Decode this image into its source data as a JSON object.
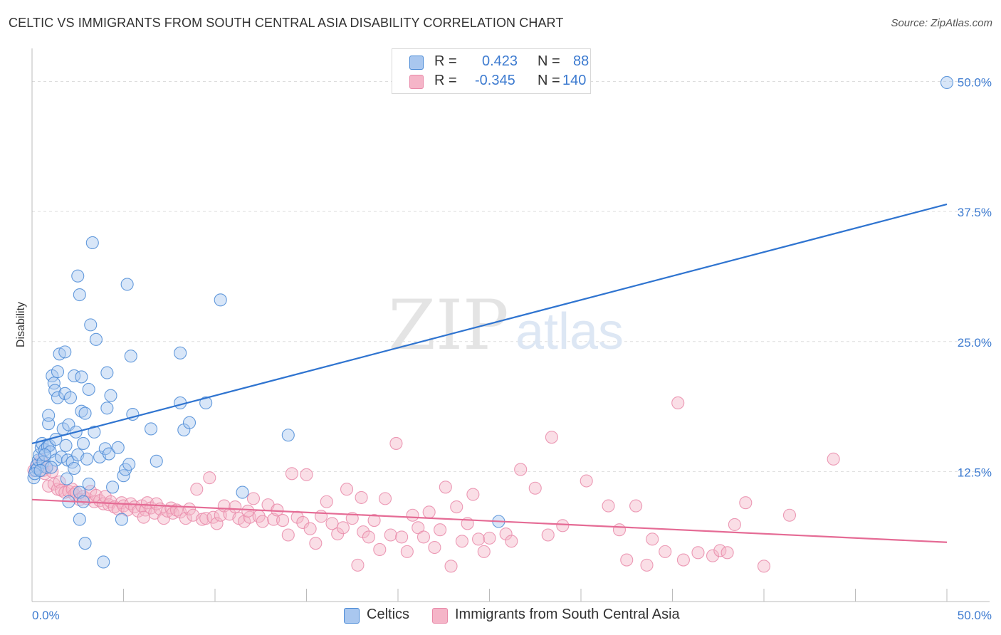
{
  "header": {
    "title": "CELTIC VS IMMIGRANTS FROM SOUTH CENTRAL ASIA DISABILITY CORRELATION CHART",
    "source": "Source: ZipAtlas.com"
  },
  "watermark": {
    "zip": "ZIP",
    "atlas": "atlas"
  },
  "legend": {
    "rows": [
      {
        "r_label": "R =",
        "r_value": "0.423",
        "n_label": "N =",
        "n_value": "88",
        "color": "#a9c7ef"
      },
      {
        "r_label": "R =",
        "r_value": "-0.345",
        "n_label": "N =",
        "n_value": "140",
        "color": "#f5b5c8"
      }
    ]
  },
  "bottom_legend": {
    "items": [
      {
        "label": "Celtics",
        "color": "#a9c7ef"
      },
      {
        "label": "Immigrants from South Central Asia",
        "color": "#f5b5c8"
      }
    ]
  },
  "colors": {
    "blue_point": "#4a8ad6",
    "blue_fill": "#a9c7ef",
    "blue_line": "#2f74d0",
    "pink_point": "#e98aa9",
    "pink_fill": "#f5b5c8",
    "pink_line": "#e56b95",
    "grid": "#dddddd",
    "tick_text": "#3d7bd0"
  },
  "chart_data": {
    "type": "scatter",
    "title": "CELTIC VS IMMIGRANTS FROM SOUTH CENTRAL ASIA DISABILITY CORRELATION CHART",
    "xlabel": "",
    "ylabel": "Disability",
    "xlim": [
      0,
      50
    ],
    "ylim": [
      0,
      52.5
    ],
    "x_tick_labels": [
      "0.0%",
      "50.0%"
    ],
    "y_ticks": [
      12.5,
      25.0,
      37.5,
      50.0
    ],
    "y_tick_labels": [
      "12.5%",
      "25.0%",
      "37.5%",
      "50.0%"
    ],
    "grid": true,
    "series": [
      {
        "name": "Celtics",
        "r": 0.423,
        "n": 88,
        "trend": {
          "x": [
            0,
            50
          ],
          "y": [
            15.2,
            38.2
          ]
        },
        "points": [
          [
            0.1,
            11.9
          ],
          [
            0.2,
            12.6
          ],
          [
            0.25,
            13.1
          ],
          [
            0.3,
            12.8
          ],
          [
            0.35,
            13.6
          ],
          [
            0.4,
            14.1
          ],
          [
            0.5,
            14.8
          ],
          [
            0.55,
            15.2
          ],
          [
            0.6,
            13.4
          ],
          [
            0.7,
            14.6
          ],
          [
            0.8,
            12.9
          ],
          [
            0.85,
            14.9
          ],
          [
            0.9,
            17.1
          ],
          [
            0.9,
            17.9
          ],
          [
            0.95,
            15.0
          ],
          [
            1.0,
            14.4
          ],
          [
            1.1,
            21.7
          ],
          [
            1.2,
            21.0
          ],
          [
            1.25,
            20.3
          ],
          [
            1.3,
            15.6
          ],
          [
            1.3,
            13.6
          ],
          [
            1.4,
            19.6
          ],
          [
            1.4,
            22.1
          ],
          [
            1.5,
            23.8
          ],
          [
            1.6,
            13.9
          ],
          [
            1.7,
            16.6
          ],
          [
            1.8,
            24.0
          ],
          [
            1.8,
            20.0
          ],
          [
            1.85,
            15.0
          ],
          [
            1.9,
            11.8
          ],
          [
            1.95,
            13.6
          ],
          [
            2.0,
            17.0
          ],
          [
            2.0,
            9.6
          ],
          [
            2.1,
            19.6
          ],
          [
            2.2,
            13.4
          ],
          [
            2.3,
            12.8
          ],
          [
            2.3,
            21.7
          ],
          [
            2.4,
            16.3
          ],
          [
            2.5,
            31.3
          ],
          [
            2.5,
            14.1
          ],
          [
            2.6,
            29.5
          ],
          [
            2.6,
            10.5
          ],
          [
            2.6,
            7.9
          ],
          [
            2.7,
            21.6
          ],
          [
            2.7,
            18.3
          ],
          [
            2.8,
            15.2
          ],
          [
            2.8,
            9.6
          ],
          [
            2.9,
            5.6
          ],
          [
            2.9,
            18.1
          ],
          [
            3.0,
            13.7
          ],
          [
            3.1,
            20.4
          ],
          [
            3.1,
            11.3
          ],
          [
            3.2,
            26.6
          ],
          [
            3.3,
            34.5
          ],
          [
            3.4,
            16.3
          ],
          [
            3.5,
            25.2
          ],
          [
            3.7,
            13.9
          ],
          [
            3.9,
            3.8
          ],
          [
            4.0,
            14.7
          ],
          [
            4.1,
            22.0
          ],
          [
            4.1,
            18.6
          ],
          [
            4.2,
            14.2
          ],
          [
            4.3,
            19.8
          ],
          [
            4.4,
            11.0
          ],
          [
            4.7,
            14.8
          ],
          [
            4.9,
            7.9
          ],
          [
            5.0,
            12.1
          ],
          [
            5.1,
            12.7
          ],
          [
            5.2,
            30.5
          ],
          [
            5.3,
            13.2
          ],
          [
            5.4,
            23.6
          ],
          [
            5.5,
            18.0
          ],
          [
            6.5,
            16.6
          ],
          [
            6.8,
            13.5
          ],
          [
            8.1,
            23.9
          ],
          [
            8.1,
            19.1
          ],
          [
            8.3,
            16.5
          ],
          [
            8.6,
            17.2
          ],
          [
            9.5,
            19.1
          ],
          [
            10.3,
            29.0
          ],
          [
            11.5,
            10.5
          ],
          [
            14.0,
            16.0
          ],
          [
            25.5,
            7.7
          ],
          [
            50.0,
            49.9
          ],
          [
            0.15,
            12.3
          ],
          [
            0.45,
            12.6
          ],
          [
            0.7,
            14.1
          ],
          [
            1.05,
            12.9
          ]
        ]
      },
      {
        "name": "Immigrants from South Central Asia",
        "r": -0.345,
        "n": 140,
        "trend": {
          "x": [
            0,
            50
          ],
          "y": [
            9.8,
            5.7
          ]
        },
        "points": [
          [
            0.1,
            12.6
          ],
          [
            0.3,
            13.2
          ],
          [
            0.5,
            13.6
          ],
          [
            0.6,
            12.6
          ],
          [
            0.7,
            12.3
          ],
          [
            0.8,
            12.9
          ],
          [
            0.9,
            11.1
          ],
          [
            1.1,
            12.5
          ],
          [
            1.2,
            11.3
          ],
          [
            1.4,
            10.8
          ],
          [
            1.5,
            11.5
          ],
          [
            1.6,
            10.7
          ],
          [
            1.8,
            10.5
          ],
          [
            2.0,
            10.6
          ],
          [
            2.2,
            10.8
          ],
          [
            2.3,
            10.3
          ],
          [
            2.4,
            10.5
          ],
          [
            2.6,
            9.8
          ],
          [
            2.8,
            10.1
          ],
          [
            3.0,
            9.9
          ],
          [
            3.2,
            10.6
          ],
          [
            3.4,
            9.6
          ],
          [
            3.5,
            10.2
          ],
          [
            3.7,
            9.7
          ],
          [
            3.9,
            9.4
          ],
          [
            4.0,
            10.1
          ],
          [
            4.2,
            9.3
          ],
          [
            4.3,
            9.6
          ],
          [
            4.5,
            9.1
          ],
          [
            4.7,
            8.9
          ],
          [
            4.9,
            9.5
          ],
          [
            5.0,
            9.2
          ],
          [
            5.2,
            8.8
          ],
          [
            5.4,
            9.4
          ],
          [
            5.6,
            9.1
          ],
          [
            5.8,
            8.7
          ],
          [
            6.0,
            9.2
          ],
          [
            6.2,
            8.8
          ],
          [
            6.3,
            9.5
          ],
          [
            6.5,
            9.0
          ],
          [
            6.7,
            8.5
          ],
          [
            6.8,
            9.4
          ],
          [
            7.0,
            8.9
          ],
          [
            7.2,
            8.0
          ],
          [
            7.4,
            8.7
          ],
          [
            7.6,
            9.0
          ],
          [
            7.7,
            8.5
          ],
          [
            7.9,
            8.8
          ],
          [
            8.1,
            8.6
          ],
          [
            8.4,
            8.0
          ],
          [
            8.6,
            8.9
          ],
          [
            8.8,
            8.3
          ],
          [
            9.0,
            10.8
          ],
          [
            9.3,
            7.9
          ],
          [
            9.5,
            8.0
          ],
          [
            9.7,
            11.9
          ],
          [
            9.9,
            8.1
          ],
          [
            10.1,
            7.5
          ],
          [
            10.3,
            8.3
          ],
          [
            10.5,
            9.2
          ],
          [
            10.8,
            8.4
          ],
          [
            11.1,
            9.1
          ],
          [
            11.3,
            8.0
          ],
          [
            11.6,
            7.7
          ],
          [
            11.9,
            8.1
          ],
          [
            12.1,
            9.9
          ],
          [
            12.4,
            8.2
          ],
          [
            12.6,
            7.7
          ],
          [
            12.9,
            9.3
          ],
          [
            13.2,
            7.9
          ],
          [
            13.4,
            8.8
          ],
          [
            13.7,
            7.8
          ],
          [
            14.0,
            6.4
          ],
          [
            14.2,
            12.3
          ],
          [
            14.5,
            8.1
          ],
          [
            14.8,
            7.6
          ],
          [
            15.0,
            12.2
          ],
          [
            15.2,
            7.0
          ],
          [
            15.5,
            5.6
          ],
          [
            15.8,
            8.2
          ],
          [
            16.1,
            9.6
          ],
          [
            16.4,
            7.5
          ],
          [
            16.7,
            6.5
          ],
          [
            17.0,
            7.1
          ],
          [
            17.2,
            10.8
          ],
          [
            17.5,
            8.0
          ],
          [
            17.8,
            3.5
          ],
          [
            18.1,
            6.7
          ],
          [
            18.4,
            6.2
          ],
          [
            18.7,
            7.8
          ],
          [
            19.0,
            5.0
          ],
          [
            19.3,
            9.9
          ],
          [
            19.6,
            6.4
          ],
          [
            19.9,
            15.2
          ],
          [
            20.2,
            6.2
          ],
          [
            20.5,
            4.8
          ],
          [
            20.8,
            8.3
          ],
          [
            21.1,
            7.1
          ],
          [
            21.4,
            6.2
          ],
          [
            21.7,
            8.6
          ],
          [
            22.0,
            5.2
          ],
          [
            22.3,
            6.9
          ],
          [
            22.6,
            11.0
          ],
          [
            22.9,
            3.4
          ],
          [
            23.2,
            9.1
          ],
          [
            23.5,
            5.8
          ],
          [
            23.8,
            7.5
          ],
          [
            24.1,
            10.3
          ],
          [
            24.4,
            6.0
          ],
          [
            24.7,
            4.8
          ],
          [
            25.0,
            6.1
          ],
          [
            25.9,
            6.5
          ],
          [
            26.7,
            12.7
          ],
          [
            27.5,
            10.9
          ],
          [
            28.2,
            6.4
          ],
          [
            28.4,
            15.8
          ],
          [
            29.0,
            7.3
          ],
          [
            30.3,
            11.6
          ],
          [
            31.5,
            9.2
          ],
          [
            32.1,
            6.9
          ],
          [
            33.0,
            9.2
          ],
          [
            33.6,
            3.5
          ],
          [
            33.9,
            6.0
          ],
          [
            34.6,
            4.8
          ],
          [
            35.3,
            19.1
          ],
          [
            35.6,
            4.0
          ],
          [
            36.4,
            4.7
          ],
          [
            37.2,
            4.4
          ],
          [
            37.6,
            4.9
          ],
          [
            38.4,
            7.4
          ],
          [
            39.0,
            9.5
          ],
          [
            40.0,
            3.4
          ],
          [
            41.4,
            8.3
          ],
          [
            43.8,
            13.7
          ],
          [
            38.0,
            4.7
          ],
          [
            32.5,
            4.0
          ],
          [
            26.2,
            5.8
          ],
          [
            18.0,
            10.0
          ],
          [
            11.8,
            8.7
          ],
          [
            6.1,
            8.1
          ]
        ]
      }
    ]
  }
}
